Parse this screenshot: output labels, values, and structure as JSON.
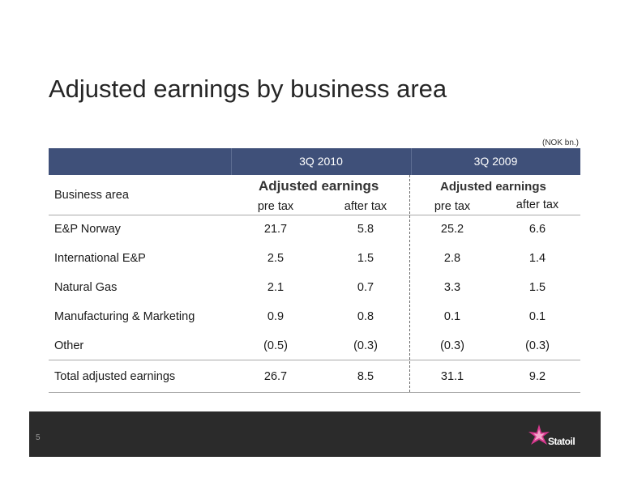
{
  "title": "Adjusted earnings by business area",
  "unit": "(NOK bn.)",
  "periods": [
    "3Q 2010",
    "3Q 2009"
  ],
  "group_label": "Adjusted earnings",
  "sub_headers": [
    "pre tax",
    "after tax",
    "pre tax",
    "after tax"
  ],
  "row_header": "Business area",
  "rows": [
    {
      "label": "E&P Norway",
      "values": [
        "21.7",
        "5.8",
        "25.2",
        "6.6"
      ]
    },
    {
      "label": "International E&P",
      "values": [
        "2.5",
        "1.5",
        "2.8",
        "1.4"
      ]
    },
    {
      "label": "Natural Gas",
      "values": [
        "2.1",
        "0.7",
        "3.3",
        "1.5"
      ]
    },
    {
      "label": "Manufacturing & Marketing",
      "values": [
        "0.9",
        "0.8",
        "0.1",
        "0.1"
      ]
    },
    {
      "label": "Other",
      "values": [
        "(0.5)",
        "(0.3)",
        "(0.3)",
        "(0.3)"
      ]
    }
  ],
  "total": {
    "label": "Total adjusted earnings",
    "values": [
      "26.7",
      "8.5",
      "31.1",
      "9.2"
    ]
  },
  "page_number": "5",
  "logo_text": "Statoil",
  "colors": {
    "header_bar": "#3f5079",
    "footer": "#2b2b2b",
    "logo_star": "#d9388f"
  }
}
